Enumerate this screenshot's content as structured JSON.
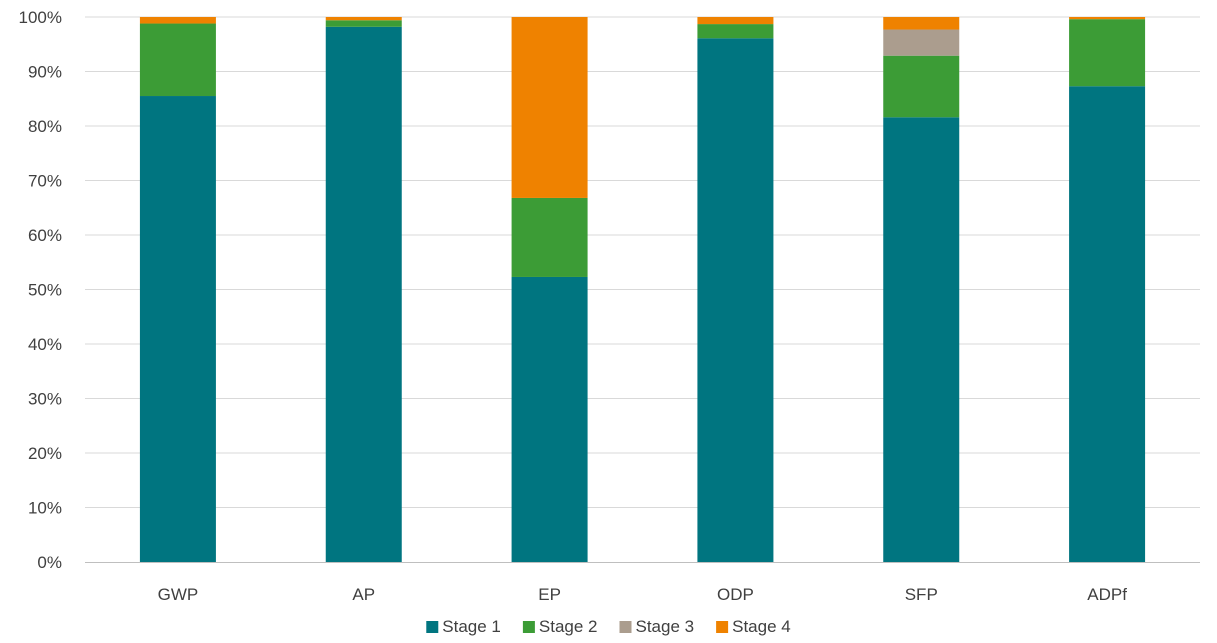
{
  "chart_data": {
    "type": "bar",
    "stacked": true,
    "percent_stacked": true,
    "categories": [
      "GWP",
      "AP",
      "EP",
      "ODP",
      "SFP",
      "ADPf"
    ],
    "series": [
      {
        "name": "Stage 1",
        "color": "#007580",
        "values": [
          85.5,
          98.2,
          52.3,
          96.1,
          81.6,
          87.3
        ]
      },
      {
        "name": "Stage 2",
        "color": "#3c9c36",
        "values": [
          13.3,
          1.2,
          14.5,
          2.6,
          11.3,
          12.3
        ]
      },
      {
        "name": "Stage 3",
        "color": "#ab9d8e",
        "values": [
          0.0,
          0.0,
          0.0,
          0.0,
          4.8,
          0.0
        ]
      },
      {
        "name": "Stage 4",
        "color": "#ef8200",
        "values": [
          1.2,
          0.6,
          33.2,
          1.3,
          2.3,
          0.4
        ]
      }
    ],
    "ylim": [
      0,
      100
    ],
    "yticks": [
      "0%",
      "10%",
      "20%",
      "30%",
      "40%",
      "50%",
      "60%",
      "70%",
      "80%",
      "90%",
      "100%"
    ],
    "grid": true,
    "legend_position": "bottom",
    "title": "",
    "xlabel": "",
    "ylabel": ""
  }
}
